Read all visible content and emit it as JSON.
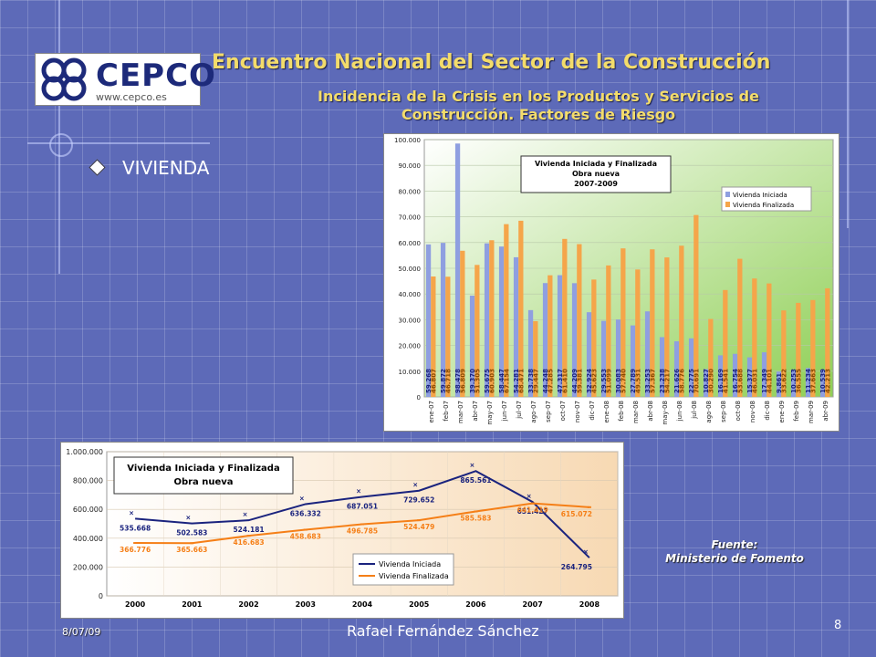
{
  "header": {
    "title": "Encuentro Nacional del Sector de la Construcción",
    "subtitle_line1": "Incidencia de la Crisis en los Productos y Servicios de",
    "subtitle_line2": "Construcción. Factores de Riesgo"
  },
  "logo": {
    "text": "CEPCO",
    "url": "www.cepco.es"
  },
  "bullet": {
    "text": "VIVIENDA"
  },
  "source": {
    "line1": "Fuente:",
    "line2": "Ministerio de Fomento"
  },
  "footer": {
    "date": "8/07/09",
    "author": "Rafael Fernández Sánchez",
    "page": "8"
  },
  "colors": {
    "series_iniciada_bar": "#8f9fe0",
    "series_finalizada_bar": "#f5a54a",
    "line_iniciada": "#1a237e",
    "line_finalizada": "#f57f17",
    "title_text": "#f3dc6b"
  },
  "chart_data": [
    {
      "type": "bar",
      "title": "Vivienda Iniciada y Finalizada",
      "subtitle": "Obra nueva",
      "period": "2007-2009",
      "ylim": [
        0,
        100000
      ],
      "yticks": [
        "0",
        "10.000",
        "20.000",
        "30.000",
        "40.000",
        "50.000",
        "60.000",
        "70.000",
        "80.000",
        "90.000",
        "100.000"
      ],
      "legend_position": "top-right",
      "categories": [
        "ene-07",
        "feb-07",
        "mar-07",
        "abr-07",
        "may-07",
        "jun-07",
        "jul-07",
        "ago-07",
        "sep-07",
        "oct-07",
        "nov-07",
        "dic-07",
        "ene-08",
        "feb-08",
        "mar-08",
        "abr-08",
        "may-08",
        "jun-08",
        "jul-08",
        "ago-08",
        "sep-08",
        "oct-08",
        "nov-08",
        "dic-08",
        "ene-09",
        "feb-09",
        "mar-09",
        "abr-09"
      ],
      "series": [
        {
          "name": "Vivienda Iniciada",
          "values": [
            59268,
            59872,
            98478,
            39370,
            59675,
            58447,
            54281,
            33738,
            44248,
            47317,
            44209,
            32924,
            29553,
            30083,
            27789,
            33253,
            23238,
            21626,
            22775,
            10827,
            16169,
            16754,
            15377,
            17349,
            9861,
            10253,
            11234,
            10539
          ],
          "labels": [
            "59.268",
            "59.872",
            "98.478",
            "39.370",
            "59.675",
            "58.447",
            "54.281",
            "33.738",
            "44.248",
            "47.317",
            "44.209",
            "32.924",
            "29.553",
            "30.083",
            "27.789",
            "33.253",
            "23.238",
            "21.626",
            "22.775",
            "10.827",
            "16.169",
            "16.754",
            "15.377",
            "17.349",
            "9.861",
            "10.253",
            "11.234",
            "10.539"
          ]
        },
        {
          "name": "Vivienda Finalizada",
          "values": [
            46807,
            46718,
            56809,
            51305,
            60903,
            67154,
            68471,
            29447,
            47285,
            61410,
            59381,
            45623,
            51099,
            57740,
            49531,
            57367,
            54217,
            58776,
            70691,
            30290,
            41541,
            53688,
            46031,
            44101,
            33622,
            36555,
            37663,
            42213
          ],
          "labels": [
            "46.807",
            "46.718",
            "56.809",
            "51.305",
            "60.903",
            "67.154",
            "68.471",
            "29.447",
            "47.285",
            "61.410",
            "59.381",
            "45.623",
            "51.099",
            "57.740",
            "49.531",
            "57.367",
            "54.217",
            "58.776",
            "70.691",
            "30.290",
            "41.541",
            "53.688",
            "46.031",
            "44.101",
            "33.622",
            "36.555",
            "37.663",
            "42.213"
          ]
        }
      ]
    },
    {
      "type": "line",
      "title": "Vivienda Iniciada y Finalizada",
      "subtitle": "Obra nueva",
      "ylim": [
        0,
        1000000
      ],
      "yticks": [
        "0",
        "200.000",
        "400.000",
        "600.000",
        "800.000",
        "1.000.000"
      ],
      "legend_position": "bottom-right",
      "categories": [
        "2000",
        "2001",
        "2002",
        "2003",
        "2004",
        "2005",
        "2006",
        "2007",
        "2008"
      ],
      "series": [
        {
          "name": "Vivienda Iniciada",
          "values": [
            535668,
            502583,
            524181,
            636332,
            687051,
            729652,
            865561,
            651427,
            264795
          ],
          "labels": [
            "535.668",
            "502.583",
            "524.181",
            "636.332",
            "687.051",
            "729.652",
            "865.561",
            "651.427",
            "264.795"
          ]
        },
        {
          "name": "Vivienda Finalizada",
          "values": [
            366776,
            365663,
            416683,
            458683,
            496785,
            524479,
            585583,
            641419,
            615072
          ],
          "labels": [
            "366.776",
            "365.663",
            "416.683",
            "458.683",
            "496.785",
            "524.479",
            "585.583",
            "641.419",
            "615.072"
          ]
        }
      ]
    }
  ]
}
